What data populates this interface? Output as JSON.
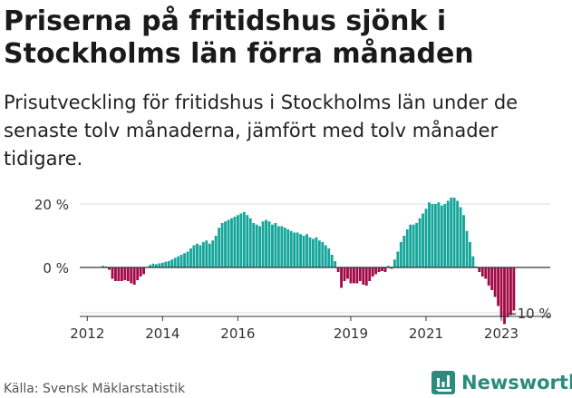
{
  "header": {
    "title": "Priserna på fritidshus sjönk i Stockholms län förra månaden",
    "subtitle": "Prisutveckling för fritidshus i Stockholms län under de senaste tolv månaderna, jämfört med tolv månader tidigare."
  },
  "footer": {
    "source": "Källa: Svensk Mäklarstatistik",
    "brand": "Newsworthy"
  },
  "colors": {
    "positive": "#14a59a",
    "negative": "#a10a47",
    "axis": "#333333",
    "grid": "#dcdcdc"
  },
  "chart_data": {
    "type": "bar",
    "title": "Priserna på fritidshus sjönk i Stockholms län förra månaden",
    "xlabel": "",
    "ylabel": "",
    "ylim": [
      -12,
      21
    ],
    "yticks": [
      {
        "value": 20,
        "label": "20 %"
      },
      {
        "value": 0,
        "label": "0 %"
      },
      {
        "value": -10,
        "label": "−10 %"
      }
    ],
    "xticks": [
      {
        "value": 2012,
        "label": "2012"
      },
      {
        "value": 2014,
        "label": "2014"
      },
      {
        "value": 2016,
        "label": "2016"
      },
      {
        "value": 2019,
        "label": "2019"
      },
      {
        "value": 2021,
        "label": "2021"
      },
      {
        "value": 2023,
        "label": "2023"
      }
    ],
    "start_month": "2012-06",
    "unit": "%",
    "values": [
      0.5,
      0.3,
      -0.5,
      -2.5,
      -3.0,
      -3.0,
      -3.0,
      -2.8,
      -3.0,
      -3.5,
      -3.8,
      -2.8,
      -2.0,
      -1.5,
      0.2,
      0.8,
      1.2,
      1.0,
      1.3,
      1.5,
      1.8,
      2.0,
      2.5,
      3.0,
      3.5,
      4.0,
      4.5,
      5.0,
      6.0,
      7.0,
      7.5,
      7.0,
      8.0,
      8.5,
      7.5,
      8.5,
      10.0,
      12.5,
      14.0,
      14.5,
      15.0,
      15.5,
      16.0,
      16.5,
      17.0,
      17.5,
      16.5,
      15.5,
      14.0,
      13.5,
      13.0,
      14.5,
      15.0,
      14.5,
      13.5,
      14.0,
      13.0,
      13.0,
      12.5,
      12.0,
      11.5,
      11.0,
      11.0,
      10.5,
      10.0,
      10.5,
      9.5,
      9.0,
      9.5,
      8.5,
      8.0,
      7.0,
      6.0,
      4.0,
      2.0,
      -1.0,
      -4.5,
      -3.0,
      -2.5,
      -3.5,
      -3.5,
      -3.5,
      -3.0,
      -3.8,
      -4.0,
      -3.0,
      -2.0,
      -1.5,
      -1.0,
      -0.8,
      -1.0,
      0.5,
      -0.3,
      2.5,
      5.0,
      8.0,
      10.0,
      12.0,
      13.5,
      13.5,
      14.0,
      15.5,
      17.0,
      18.5,
      20.5,
      20.0,
      20.0,
      20.5,
      19.5,
      20.0,
      21.0,
      22.0,
      22.0,
      21.0,
      19.0,
      16.5,
      11.5,
      8.0,
      3.5,
      0.3,
      -1.0,
      -2.0,
      -2.5,
      -4.0,
      -5.0,
      -6.5,
      -8.5,
      -11.0,
      -12.5,
      -11.0,
      -10.5,
      -9.5
    ]
  }
}
